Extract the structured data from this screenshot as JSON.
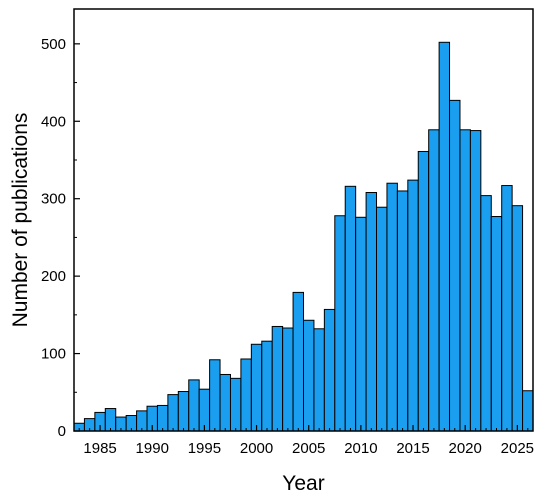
{
  "chart_data": {
    "type": "bar",
    "title": "",
    "xlabel": "Year",
    "ylabel": "Number of publications",
    "xlim": [
      1983,
      2026
    ],
    "ylim": [
      0,
      545
    ],
    "xticks": [
      1985,
      1990,
      1995,
      2000,
      2005,
      2010,
      2015,
      2020,
      2025
    ],
    "yticks": [
      0,
      100,
      200,
      300,
      400,
      500
    ],
    "grid": false,
    "bar_color": "#1a9ff0",
    "categories": [
      1983,
      1984,
      1985,
      1986,
      1987,
      1988,
      1989,
      1990,
      1991,
      1992,
      1993,
      1994,
      1995,
      1996,
      1997,
      1998,
      1999,
      2000,
      2001,
      2002,
      2003,
      2004,
      2005,
      2006,
      2007,
      2008,
      2009,
      2010,
      2011,
      2012,
      2013,
      2014,
      2015,
      2016,
      2017,
      2018,
      2019,
      2020,
      2021,
      2022,
      2023,
      2024,
      2025,
      2026
    ],
    "values": [
      10,
      16,
      24,
      29,
      18,
      20,
      26,
      32,
      33,
      47,
      51,
      66,
      54,
      92,
      73,
      68,
      93,
      112,
      116,
      135,
      133,
      179,
      143,
      132,
      157,
      278,
      316,
      276,
      308,
      289,
      320,
      310,
      324,
      361,
      389,
      502,
      427,
      389,
      388,
      304,
      277,
      317,
      291,
      52
    ]
  }
}
